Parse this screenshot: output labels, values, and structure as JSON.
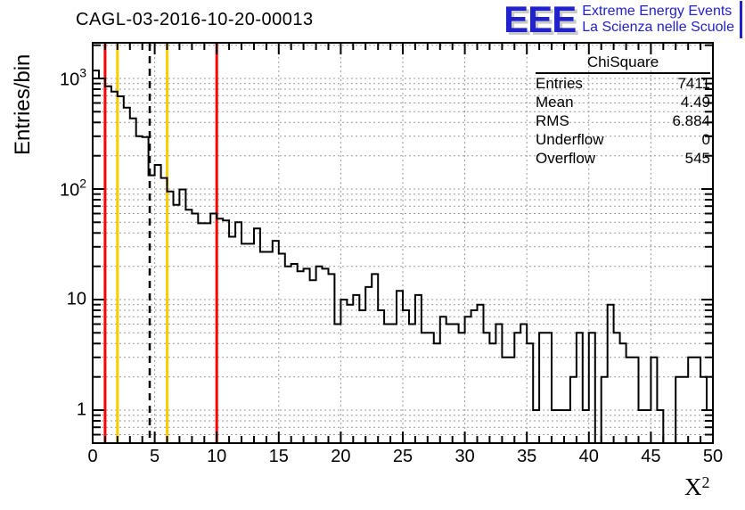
{
  "page": {
    "background": "#ffffff"
  },
  "logo": {
    "letters": "EEE",
    "line1": "Extreme Energy Events",
    "line2": "La Scienza nelle Scuole",
    "color": "#2222cc"
  },
  "stats": {
    "title": "ChiSquare",
    "rows": [
      {
        "label": "Entries",
        "value": "7411"
      },
      {
        "label": "Mean",
        "value": "4.49"
      },
      {
        "label": "RMS",
        "value": "6.884"
      },
      {
        "label": "Underflow",
        "value": "0"
      },
      {
        "label": "Overflow",
        "value": "545"
      }
    ]
  },
  "chart_data": {
    "type": "bar",
    "style": "step-histogram-outline",
    "title": "CAGL-03-2016-10-20-00013",
    "xlabel_base": "X",
    "xlabel_exp": "2",
    "ylabel": "Entries/bin",
    "y_log": true,
    "xlim": [
      0,
      50
    ],
    "ylim": [
      0.5,
      2000
    ],
    "bin_start": 0,
    "bin_width": 0.5,
    "values": [
      1180,
      1000,
      850,
      760,
      690,
      545,
      435,
      300,
      295,
      133,
      165,
      126,
      95,
      72,
      99,
      65,
      60,
      49,
      49,
      60,
      54,
      52,
      37,
      50,
      32,
      32,
      44,
      27,
      27,
      34,
      26,
      20,
      21,
      18,
      19,
      15,
      20,
      19,
      17,
      6,
      10,
      9,
      11,
      8,
      13,
      17,
      8,
      6,
      6,
      12,
      8,
      6,
      11,
      5,
      5,
      4,
      7,
      6,
      6,
      5,
      7,
      8,
      9,
      5,
      4,
      6,
      3,
      3,
      5,
      6,
      4,
      1,
      5,
      5,
      1,
      1,
      1,
      2,
      5,
      1,
      5,
      0,
      2,
      9,
      5,
      4,
      3,
      3,
      1,
      1,
      3,
      1,
      0,
      0,
      2,
      2,
      3,
      3,
      2,
      1
    ],
    "x_major_ticks": [
      0,
      5,
      10,
      15,
      20,
      25,
      30,
      35,
      40,
      45,
      50
    ],
    "x_minor_step": 1,
    "y_tick_labels": [
      {
        "v": 1,
        "base": "1",
        "exp": ""
      },
      {
        "v": 10,
        "base": "10",
        "exp": ""
      },
      {
        "v": 100,
        "base": "10",
        "exp": "2"
      },
      {
        "v": 1000,
        "base": "10",
        "exp": "3"
      }
    ],
    "grid": {
      "on": true,
      "color": "#999999",
      "dash": "2,3"
    },
    "line_color": "#000000",
    "marker_lines": [
      {
        "x": 1,
        "color": "#ff0000",
        "style": "solid"
      },
      {
        "x": 2,
        "color": "#ffcc00",
        "style": "solid"
      },
      {
        "x": 4.6,
        "color": "#000000",
        "style": "dashed"
      },
      {
        "x": 6,
        "color": "#ffcc00",
        "style": "solid"
      },
      {
        "x": 10,
        "color": "#ff0000",
        "style": "solid"
      }
    ]
  }
}
